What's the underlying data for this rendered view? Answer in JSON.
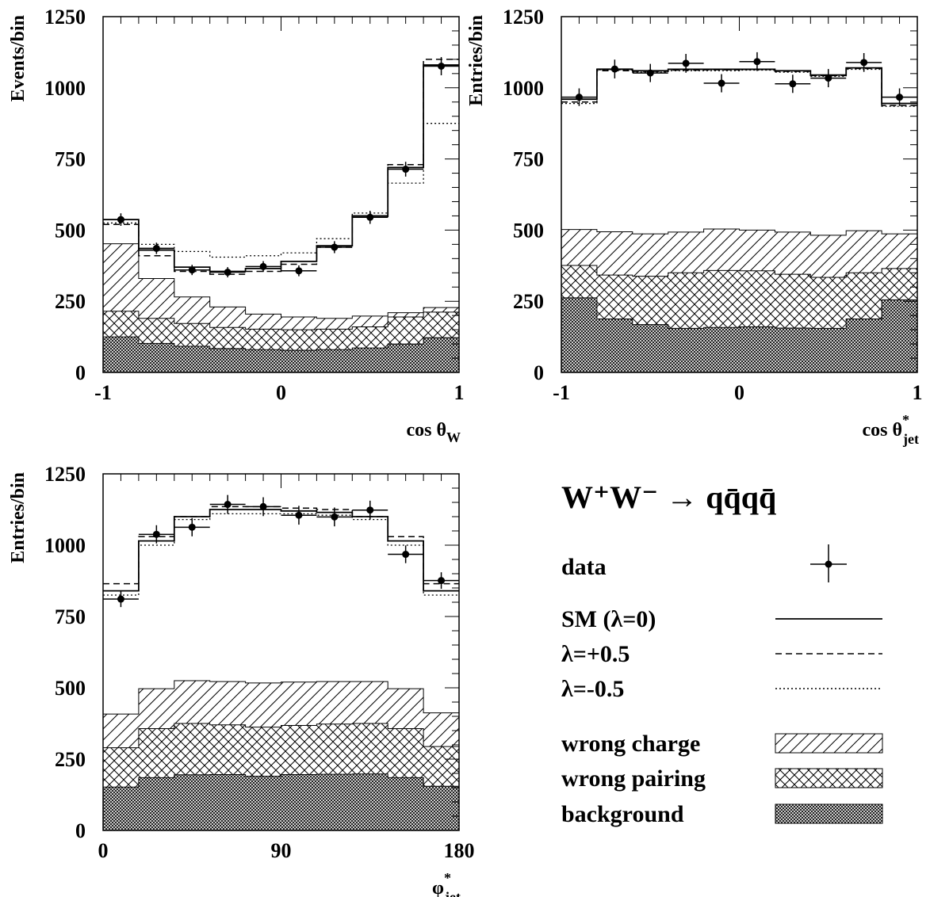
{
  "chart_data": [
    {
      "type": "bar",
      "ylabel": "Events/bin",
      "xlabel": "cos θ",
      "xlabel_sub": "W",
      "xlim": [
        -1,
        1
      ],
      "ylim": [
        0,
        1250
      ],
      "xticks": [
        "-1",
        "0",
        "1"
      ],
      "xtick_values": [
        -1,
        0,
        1
      ],
      "yticks": [
        "0",
        "250",
        "500",
        "750",
        "1000",
        "1250"
      ],
      "ytick_values": [
        0,
        250,
        500,
        750,
        1000,
        1250
      ],
      "bin_edges": [
        -1,
        -0.8,
        -0.6,
        -0.4,
        -0.2,
        0,
        0.2,
        0.4,
        0.6,
        0.8,
        1
      ],
      "data": {
        "x": [
          -0.9,
          -0.7,
          -0.5,
          -0.3,
          -0.1,
          0.1,
          0.3,
          0.5,
          0.7,
          0.9
        ],
        "y": [
          537,
          436,
          360,
          352,
          372,
          357,
          440,
          545,
          714,
          1076
        ],
        "yerr": [
          22,
          20,
          18,
          18,
          19,
          19,
          21,
          23,
          26,
          32
        ]
      },
      "series": [
        {
          "name": "SM (λ=0)",
          "values": [
            537,
            430,
            370,
            355,
            365,
            390,
            445,
            550,
            720,
            1080
          ]
        },
        {
          "name": "λ=+0.5",
          "values": [
            520,
            410,
            355,
            345,
            355,
            380,
            440,
            545,
            730,
            1100
          ]
        },
        {
          "name": "λ=-0.5",
          "values": [
            525,
            450,
            425,
            405,
            410,
            420,
            470,
            560,
            665,
            875
          ]
        },
        {
          "name": "wrong charge",
          "values": [
            452,
            330,
            265,
            230,
            205,
            195,
            190,
            198,
            210,
            228
          ]
        },
        {
          "name": "wrong pairing",
          "values": [
            215,
            190,
            172,
            158,
            152,
            150,
            152,
            160,
            195,
            212
          ]
        },
        {
          "name": "background",
          "values": [
            125,
            102,
            92,
            84,
            80,
            78,
            80,
            86,
            100,
            122
          ]
        }
      ]
    },
    {
      "type": "bar",
      "ylabel": "Entries/bin",
      "xlabel": "cos θ",
      "xlabel_sub": "jet",
      "xlabel_sup": "*",
      "xlim": [
        -1,
        1
      ],
      "ylim": [
        0,
        1250
      ],
      "xticks": [
        "-1",
        "0",
        "1"
      ],
      "xtick_values": [
        -1,
        0,
        1
      ],
      "yticks": [
        "0",
        "250",
        "500",
        "750",
        "1000",
        "1250"
      ],
      "ytick_values": [
        0,
        250,
        500,
        750,
        1000,
        1250
      ],
      "bin_edges": [
        -1,
        -0.8,
        -0.6,
        -0.4,
        -0.2,
        0,
        0.2,
        0.4,
        0.6,
        0.8,
        1
      ],
      "data": {
        "x": [
          -0.9,
          -0.7,
          -0.5,
          -0.3,
          -0.1,
          0.1,
          0.3,
          0.5,
          0.7,
          0.9
        ],
        "y": [
          967,
          1066,
          1052,
          1086,
          1016,
          1092,
          1014,
          1034,
          1089,
          967
        ],
        "yerr": [
          31,
          33,
          32,
          33,
          32,
          33,
          32,
          32,
          33,
          31
        ]
      },
      "series": [
        {
          "name": "SM (λ=0)",
          "values": [
            960,
            1065,
            1060,
            1065,
            1065,
            1065,
            1060,
            1045,
            1070,
            945
          ]
        },
        {
          "name": "λ=+0.5",
          "values": [
            950,
            1060,
            1058,
            1062,
            1063,
            1064,
            1058,
            1043,
            1068,
            938
          ]
        },
        {
          "name": "λ=-0.5",
          "values": [
            945,
            1063,
            1055,
            1060,
            1060,
            1062,
            1055,
            1040,
            1065,
            935
          ]
        },
        {
          "name": "wrong charge",
          "values": [
            502,
            494,
            487,
            493,
            504,
            500,
            493,
            482,
            498,
            487
          ]
        },
        {
          "name": "wrong pairing",
          "values": [
            376,
            342,
            338,
            350,
            358,
            357,
            345,
            334,
            350,
            365
          ]
        },
        {
          "name": "background",
          "values": [
            262,
            188,
            168,
            155,
            158,
            160,
            156,
            155,
            188,
            255
          ]
        }
      ]
    },
    {
      "type": "bar",
      "ylabel": "Entries/bin",
      "xlabel": "φ",
      "xlabel_sub": "jet",
      "xlabel_sup": "*",
      "xlim": [
        0,
        180
      ],
      "ylim": [
        0,
        1250
      ],
      "xticks": [
        "0",
        "90",
        "180"
      ],
      "xtick_values": [
        0,
        90,
        180
      ],
      "yticks": [
        "0",
        "250",
        "500",
        "750",
        "1000",
        "1250"
      ],
      "ytick_values": [
        0,
        250,
        500,
        750,
        1000,
        1250
      ],
      "bin_edges": [
        0,
        18,
        36,
        54,
        72,
        90,
        108,
        126,
        144,
        162,
        180
      ],
      "data": {
        "x": [
          9,
          27,
          45,
          63,
          81,
          99,
          117,
          135,
          153,
          171
        ],
        "y": [
          811,
          1038,
          1063,
          1143,
          1135,
          1105,
          1099,
          1123,
          968,
          876
        ],
        "yerr": [
          28,
          32,
          32,
          33,
          33,
          33,
          33,
          33,
          31,
          29
        ]
      },
      "series": [
        {
          "name": "SM (λ=0)",
          "values": [
            840,
            1015,
            1100,
            1125,
            1125,
            1120,
            1115,
            1100,
            1015,
            840
          ]
        },
        {
          "name": "λ=+0.5",
          "values": [
            865,
            1030,
            1100,
            1135,
            1135,
            1130,
            1125,
            1100,
            1030,
            865
          ]
        },
        {
          "name": "λ=-0.5",
          "values": [
            825,
            1000,
            1090,
            1110,
            1110,
            1110,
            1105,
            1090,
            1000,
            825
          ]
        },
        {
          "name": "wrong charge",
          "values": [
            408,
            497,
            525,
            522,
            517,
            520,
            522,
            522,
            497,
            412
          ]
        },
        {
          "name": "wrong pairing",
          "values": [
            290,
            357,
            375,
            370,
            362,
            368,
            373,
            375,
            357,
            294
          ]
        },
        {
          "name": "background",
          "values": [
            152,
            185,
            195,
            196,
            190,
            196,
            197,
            198,
            185,
            155
          ]
        }
      ]
    }
  ],
  "legend": {
    "title": "W⁺W⁻ → qq̄qq̄",
    "entries": [
      {
        "label": "data",
        "kind": "data"
      },
      {
        "label": "SM (λ=0)",
        "kind": "solid"
      },
      {
        "label": "λ=+0.5",
        "kind": "dashed"
      },
      {
        "label": "λ=-0.5",
        "kind": "dotted"
      },
      {
        "label": "wrong charge",
        "kind": "hatch"
      },
      {
        "label": "wrong pairing",
        "kind": "cross"
      },
      {
        "label": "background",
        "kind": "dense"
      }
    ]
  }
}
